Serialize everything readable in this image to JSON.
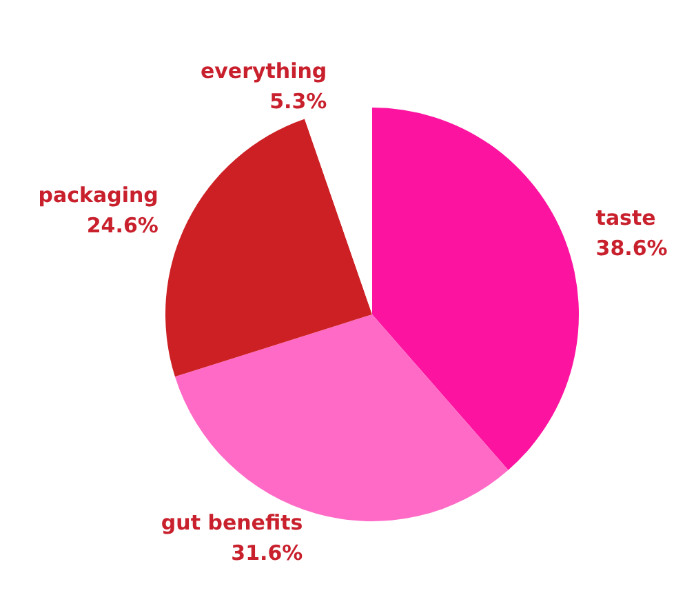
{
  "chart_data": {
    "type": "pie",
    "categories": [
      "taste",
      "gut benefits",
      "packaging",
      "everything"
    ],
    "values": [
      38.6,
      31.6,
      24.6,
      5.3
    ],
    "colors": [
      "#fc14a0",
      "#ff6ac6",
      "#cd2024",
      "#ffffff"
    ],
    "value_labels": [
      "38.6%",
      "31.6%",
      "24.6%",
      "5.3%"
    ],
    "legend": false
  }
}
